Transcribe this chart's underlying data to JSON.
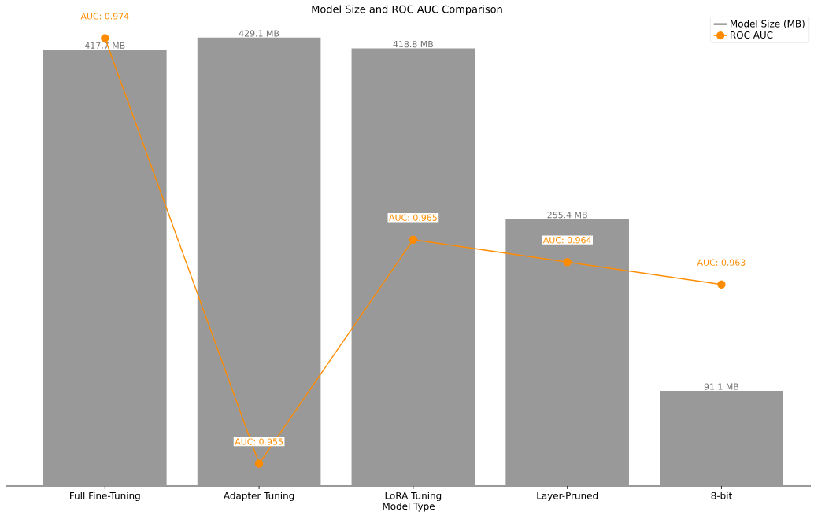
{
  "chart_data": {
    "type": "bar",
    "title": "Model Size and ROC AUC Comparison",
    "xlabel": "Model Type",
    "categories": [
      "Full Fine-Tuning",
      "Adapter Tuning",
      "LoRA Tuning",
      "Layer-Pruned",
      "8-bit"
    ],
    "series": [
      {
        "name": "Model Size (MB)",
        "color": "#999999",
        "values": [
          417.7,
          429.1,
          418.8,
          255.4,
          91.1
        ],
        "value_labels": [
          "417.7 MB",
          "429.1 MB",
          "418.8 MB",
          "255.4 MB",
          "91.1 MB"
        ]
      },
      {
        "name": "ROC AUC",
        "type": "line",
        "axis": "y2",
        "color": "#ff8c00",
        "values": [
          0.974,
          0.955,
          0.965,
          0.964,
          0.963
        ],
        "value_labels": [
          "AUC: 0.974",
          "AUC: 0.955",
          "AUC: 0.965",
          "AUC: 0.964",
          "AUC: 0.963"
        ]
      }
    ],
    "marker": "circle",
    "ylim": [
      0,
      450
    ],
    "y2lim": [
      0.954,
      0.975
    ],
    "tick_labels": "x",
    "legend": "top right"
  }
}
